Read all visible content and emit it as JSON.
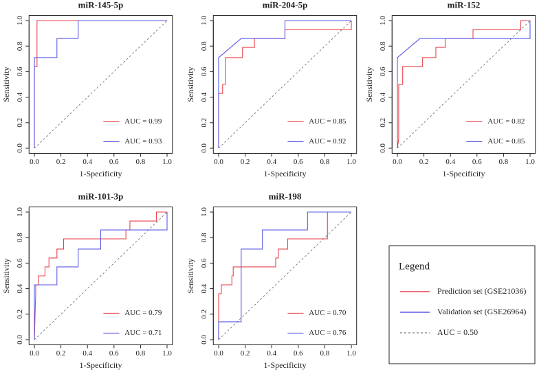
{
  "chart_data": [
    {
      "type": "line",
      "title": "miR-145-5p",
      "xlabel": "1-Specificity",
      "ylabel": "Sensitivity",
      "xlim": [
        -0.04,
        1.04
      ],
      "ylim": [
        -0.04,
        1.04
      ],
      "xticks": [
        {
          "value": 0,
          "label": "0.0"
        },
        0.2,
        0.4,
        0.6,
        0.8,
        {
          "value": 1,
          "label": "1.0"
        }
      ],
      "yticks": [
        {
          "value": 0,
          "label": "0.0"
        },
        0.2,
        0.4,
        0.6,
        0.8,
        {
          "value": 1,
          "label": "1.0"
        }
      ],
      "series": [
        {
          "name": "AUC = 0.99",
          "color": "#e8434a",
          "x": [
            0,
            0,
            0.02,
            0.02,
            1
          ],
          "values": [
            0,
            0.64,
            0.64,
            1,
            1
          ]
        },
        {
          "name": "AUC = 0.93",
          "color": "#5a5ae6",
          "x": [
            0,
            0,
            0.17,
            0.17,
            0.33,
            0.33,
            1
          ],
          "values": [
            0,
            0.71,
            0.71,
            0.86,
            0.86,
            1,
            1
          ]
        }
      ]
    },
    {
      "type": "line",
      "title": "miR-204-5p",
      "xlabel": "1-Specificity",
      "ylabel": "Sensitivity",
      "xlim": [
        -0.04,
        1.04
      ],
      "ylim": [
        -0.04,
        1.04
      ],
      "xticks": [
        {
          "value": 0,
          "label": "0.0"
        },
        0.2,
        0.4,
        0.6,
        0.8,
        {
          "value": 1,
          "label": "1.0"
        }
      ],
      "yticks": [
        {
          "value": 0,
          "label": "0.0"
        },
        0.2,
        0.4,
        0.6,
        0.8,
        {
          "value": 1,
          "label": "1.0"
        }
      ],
      "series": [
        {
          "name": "AUC = 0.85",
          "color": "#e8434a",
          "x": [
            0,
            0,
            0.03,
            0.03,
            0.05,
            0.05,
            0.18,
            0.18,
            0.27,
            0.27,
            0.5,
            0.5,
            1,
            1
          ],
          "values": [
            0,
            0.43,
            0.43,
            0.5,
            0.5,
            0.71,
            0.71,
            0.79,
            0.79,
            0.86,
            0.86,
            0.93,
            0.93,
            1
          ]
        },
        {
          "name": "AUC = 0.92",
          "color": "#5a5ae6",
          "x": [
            0,
            0,
            0.17,
            0.5,
            0.5,
            1
          ],
          "values": [
            0,
            0.71,
            0.86,
            0.86,
            1,
            1
          ]
        }
      ]
    },
    {
      "type": "line",
      "title": "miR-152",
      "xlabel": "1-Specificity",
      "ylabel": "Sensitivity",
      "xlim": [
        -0.04,
        1.04
      ],
      "ylim": [
        -0.04,
        1.04
      ],
      "xticks": [
        {
          "value": 0,
          "label": "0.0"
        },
        0.2,
        0.4,
        0.6,
        0.8,
        {
          "value": 1,
          "label": "1.0"
        }
      ],
      "yticks": [
        {
          "value": 0,
          "label": "0.0"
        },
        0.2,
        0.4,
        0.6,
        0.8,
        {
          "value": 1,
          "label": "1.0"
        }
      ],
      "series": [
        {
          "name": "AUC = 0.82",
          "color": "#e8434a",
          "x": [
            0,
            0.01,
            0.01,
            0.04,
            0.04,
            0.19,
            0.19,
            0.29,
            0.29,
            0.36,
            0.36,
            0.57,
            0.57,
            0.93,
            0.93,
            1
          ],
          "values": [
            0,
            0.07,
            0.5,
            0.5,
            0.64,
            0.64,
            0.71,
            0.71,
            0.79,
            0.79,
            0.86,
            0.86,
            0.93,
            0.93,
            1,
            1
          ]
        },
        {
          "name": "AUC = 0.85",
          "color": "#5a5ae6",
          "x": [
            0,
            0,
            0.17,
            1,
            1
          ],
          "values": [
            0,
            0.71,
            0.86,
            0.86,
            1
          ]
        }
      ]
    },
    {
      "type": "line",
      "title": "miR-101-3p",
      "xlabel": "1-Specificity",
      "ylabel": "Sensitivity",
      "xlim": [
        -0.04,
        1.04
      ],
      "ylim": [
        -0.04,
        1.04
      ],
      "xticks": [
        {
          "value": 0,
          "label": "0.0"
        },
        0.2,
        0.4,
        0.6,
        0.8,
        {
          "value": 1,
          "label": "1.0"
        }
      ],
      "yticks": [
        {
          "value": 0,
          "label": "0.0"
        },
        0.2,
        0.4,
        0.6,
        0.8,
        {
          "value": 1,
          "label": "1.0"
        }
      ],
      "series": [
        {
          "name": "AUC = 0.79",
          "color": "#e8434a",
          "x": [
            0,
            0.01,
            0.01,
            0.03,
            0.03,
            0.08,
            0.08,
            0.11,
            0.11,
            0.17,
            0.17,
            0.22,
            0.22,
            0.69,
            0.69,
            0.72,
            0.72,
            0.92,
            0.92,
            1
          ],
          "values": [
            0,
            0.36,
            0.43,
            0.43,
            0.5,
            0.5,
            0.57,
            0.57,
            0.64,
            0.64,
            0.71,
            0.71,
            0.79,
            0.79,
            0.86,
            0.86,
            0.93,
            0.93,
            1,
            1
          ]
        },
        {
          "name": "AUC = 0.71",
          "color": "#5a5ae6",
          "x": [
            0,
            0,
            0.17,
            0.17,
            0.33,
            0.33,
            0.5,
            0.5,
            1,
            1
          ],
          "values": [
            0,
            0.43,
            0.43,
            0.57,
            0.57,
            0.71,
            0.71,
            0.86,
            0.86,
            1
          ]
        }
      ]
    },
    {
      "type": "line",
      "title": "miR-198",
      "xlabel": "1-Specificity",
      "ylabel": "Sensitivity",
      "xlim": [
        -0.04,
        1.04
      ],
      "ylim": [
        -0.04,
        1.04
      ],
      "xticks": [
        {
          "value": 0,
          "label": "0.0"
        },
        0.2,
        0.4,
        0.6,
        0.8,
        {
          "value": 1,
          "label": "1.0"
        }
      ],
      "yticks": [
        {
          "value": 0,
          "label": "0.0"
        },
        0.2,
        0.4,
        0.6,
        0.8,
        {
          "value": 1,
          "label": "1.0"
        }
      ],
      "series": [
        {
          "name": "AUC = 0.70",
          "color": "#e8434a",
          "x": [
            0,
            0,
            0.02,
            0.02,
            0.1,
            0.1,
            0.11,
            0.11,
            0.43,
            0.43,
            0.45,
            0.45,
            0.52,
            0.52,
            0.82,
            0.82,
            1
          ],
          "values": [
            0,
            0.36,
            0.36,
            0.43,
            0.43,
            0.5,
            0.5,
            0.57,
            0.57,
            0.64,
            0.64,
            0.71,
            0.71,
            0.79,
            0.79,
            1,
            1
          ]
        },
        {
          "name": "AUC = 0.76",
          "color": "#5a5ae6",
          "x": [
            0,
            0,
            0.17,
            0.17,
            0.33,
            0.33,
            0.67,
            0.67,
            1
          ],
          "values": [
            0,
            0.14,
            0.14,
            0.71,
            0.71,
            0.86,
            0.86,
            1,
            1
          ]
        }
      ]
    }
  ],
  "legend": {
    "title": "Legend",
    "entries": [
      {
        "name": "Prediction set (GSE21036)",
        "color": "#e8434a"
      },
      {
        "name": "Validation set (GSE26964)",
        "color": "#5a5ae6"
      },
      {
        "name": "AUC = 0.50",
        "color": "#555555",
        "dashed": true
      }
    ]
  }
}
